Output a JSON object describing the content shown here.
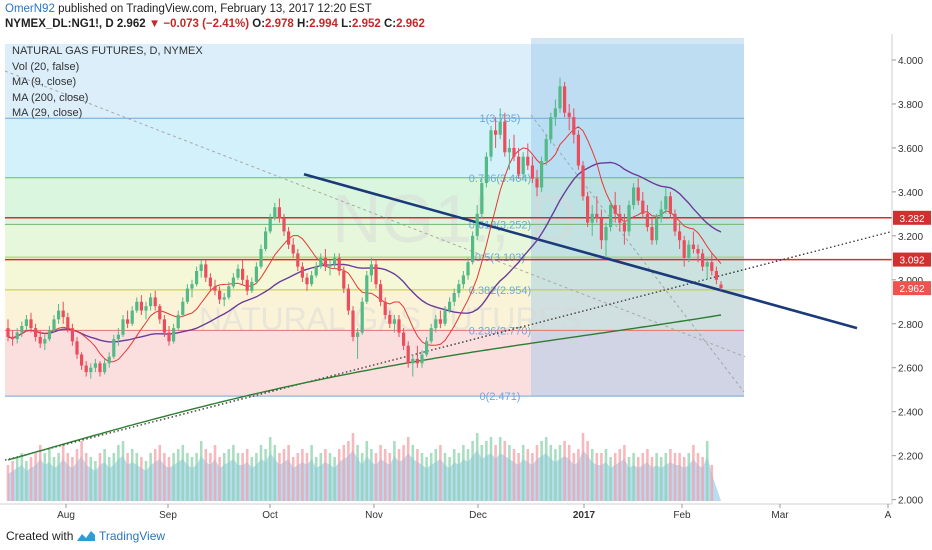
{
  "header": {
    "author": "OmerN92",
    "published_text": "published on TradingView.com, February 13, 2017 12:20 EST",
    "symbol": "NYMEX_DL:NG1!, D",
    "last": "2.962",
    "change": "▼ −0.073 (−2.41%)",
    "o_label": "O:",
    "o_value": "2.978",
    "h_label": "H:",
    "h_value": "2.994",
    "l_label": "L:",
    "l_value": "2.952",
    "c_label": "C:",
    "c_value": "2.962"
  },
  "legend": {
    "title": "NATURAL GAS FUTURES, D, NYMEX",
    "items": [
      "Vol (20, false)",
      "MA (9, close)",
      "MA (200, close)",
      "MA (29, close)"
    ]
  },
  "watermark": {
    "symbol": "NG1!, D",
    "name": "NATURAL GAS FUTURES"
  },
  "footer": {
    "created_with": "Created with",
    "brand": "TradingView"
  },
  "colors": {
    "up": "#53b987",
    "down": "#eb4d5c",
    "ma9": "#e53935",
    "ma29": "#6a3d9a",
    "ma200": "#2e7d32",
    "trend": "#1a3a7a",
    "level": "#d32f2f",
    "fib_label": "#6ea8d8"
  },
  "chart_data": {
    "type": "candlestick",
    "title": "NATURAL GAS FUTURES, D, NYMEX",
    "x_tick_labels": [
      "Aug",
      "Sep",
      "Oct",
      "Nov",
      "Dec",
      "2017",
      "Feb",
      "Mar",
      "A"
    ],
    "y_tick_labels": [
      "4.000",
      "3.800",
      "3.600",
      "3.400",
      "3.200",
      "3.000",
      "2.800",
      "2.600",
      "2.400",
      "2.200",
      "2.000"
    ],
    "ylim": [
      1.98,
      4.1
    ],
    "price_labels": [
      {
        "value": 3.282,
        "text": "3.282",
        "color": "#d32f2f"
      },
      {
        "value": 3.092,
        "text": "3.092",
        "color": "#d32f2f"
      },
      {
        "value": 2.962,
        "text": "2.962",
        "color": "#ef5350"
      }
    ],
    "horizontal_levels": [
      3.282,
      3.092
    ],
    "fibonacci": {
      "levels": [
        {
          "ratio": 1,
          "price": 3.735,
          "label": "1(3.735)"
        },
        {
          "ratio": 0.786,
          "price": 3.464,
          "label": "0.786(3.464)"
        },
        {
          "ratio": 0.618,
          "price": 3.252,
          "label": "0.618(3.252)"
        },
        {
          "ratio": 0.5,
          "price": 3.103,
          "label": "0.5(3.103)"
        },
        {
          "ratio": 0.382,
          "price": 2.954,
          "label": "0.382(2.954)"
        },
        {
          "ratio": 0.236,
          "price": 2.77,
          "label": "0.236(2.770)"
        },
        {
          "ratio": 0,
          "price": 2.471,
          "label": "0(2.471)"
        }
      ]
    },
    "ohlc": [
      [
        2.78,
        2.82,
        2.72,
        2.74
      ],
      [
        2.74,
        2.77,
        2.7,
        2.73
      ],
      [
        2.73,
        2.78,
        2.71,
        2.76
      ],
      [
        2.76,
        2.81,
        2.74,
        2.79
      ],
      [
        2.79,
        2.84,
        2.77,
        2.82
      ],
      [
        2.82,
        2.85,
        2.76,
        2.78
      ],
      [
        2.78,
        2.8,
        2.72,
        2.74
      ],
      [
        2.74,
        2.77,
        2.69,
        2.71
      ],
      [
        2.71,
        2.75,
        2.68,
        2.73
      ],
      [
        2.73,
        2.79,
        2.72,
        2.77
      ],
      [
        2.77,
        2.84,
        2.76,
        2.82
      ],
      [
        2.82,
        2.89,
        2.8,
        2.86
      ],
      [
        2.86,
        2.9,
        2.8,
        2.83
      ],
      [
        2.83,
        2.85,
        2.76,
        2.78
      ],
      [
        2.78,
        2.8,
        2.7,
        2.72
      ],
      [
        2.72,
        2.74,
        2.64,
        2.66
      ],
      [
        2.66,
        2.67,
        2.59,
        2.61
      ],
      [
        2.61,
        2.63,
        2.56,
        2.58
      ],
      [
        2.58,
        2.62,
        2.55,
        2.6
      ],
      [
        2.6,
        2.64,
        2.58,
        2.62
      ],
      [
        2.62,
        2.63,
        2.56,
        2.58
      ],
      [
        2.58,
        2.64,
        2.57,
        2.62
      ],
      [
        2.62,
        2.67,
        2.6,
        2.65
      ],
      [
        2.65,
        2.75,
        2.64,
        2.73
      ],
      [
        2.73,
        2.78,
        2.7,
        2.75
      ],
      [
        2.75,
        2.84,
        2.74,
        2.82
      ],
      [
        2.82,
        2.86,
        2.78,
        2.8
      ],
      [
        2.8,
        2.88,
        2.79,
        2.86
      ],
      [
        2.86,
        2.92,
        2.85,
        2.9
      ],
      [
        2.9,
        2.93,
        2.84,
        2.86
      ],
      [
        2.86,
        2.9,
        2.82,
        2.88
      ],
      [
        2.88,
        2.94,
        2.86,
        2.92
      ],
      [
        2.92,
        2.95,
        2.86,
        2.88
      ],
      [
        2.88,
        2.89,
        2.8,
        2.82
      ],
      [
        2.82,
        2.84,
        2.74,
        2.76
      ],
      [
        2.76,
        2.79,
        2.7,
        2.72
      ],
      [
        2.72,
        2.8,
        2.71,
        2.78
      ],
      [
        2.78,
        2.86,
        2.77,
        2.84
      ],
      [
        2.84,
        2.92,
        2.83,
        2.9
      ],
      [
        2.9,
        2.98,
        2.89,
        2.96
      ],
      [
        2.96,
        3.0,
        2.92,
        2.98
      ],
      [
        2.98,
        3.06,
        2.97,
        3.04
      ],
      [
        3.04,
        3.09,
        3.01,
        3.07
      ],
      [
        3.07,
        3.09,
        2.99,
        3.01
      ],
      [
        3.01,
        3.03,
        2.95,
        2.97
      ],
      [
        2.97,
        3.0,
        2.93,
        2.95
      ],
      [
        2.95,
        2.97,
        2.89,
        2.91
      ],
      [
        2.91,
        2.94,
        2.88,
        2.92
      ],
      [
        2.92,
        2.99,
        2.91,
        2.97
      ],
      [
        2.97,
        3.03,
        2.96,
        3.01
      ],
      [
        3.01,
        3.07,
        3.0,
        3.05
      ],
      [
        3.05,
        3.09,
        2.98,
        3.0
      ],
      [
        3.0,
        3.02,
        2.93,
        2.95
      ],
      [
        2.95,
        3.01,
        2.94,
        2.99
      ],
      [
        2.99,
        3.08,
        2.98,
        3.06
      ],
      [
        3.06,
        3.16,
        3.05,
        3.14
      ],
      [
        3.14,
        3.24,
        3.13,
        3.22
      ],
      [
        3.22,
        3.3,
        3.21,
        3.28
      ],
      [
        3.28,
        3.35,
        3.27,
        3.33
      ],
      [
        3.33,
        3.37,
        3.26,
        3.28
      ],
      [
        3.28,
        3.3,
        3.2,
        3.22
      ],
      [
        3.22,
        3.24,
        3.14,
        3.16
      ],
      [
        3.16,
        3.19,
        3.1,
        3.12
      ],
      [
        3.12,
        3.14,
        3.04,
        3.06
      ],
      [
        3.06,
        3.08,
        2.99,
        3.01
      ],
      [
        3.01,
        3.03,
        2.95,
        2.98
      ],
      [
        2.98,
        3.04,
        2.97,
        3.02
      ],
      [
        3.02,
        3.08,
        3.01,
        3.06
      ],
      [
        3.06,
        3.12,
        3.05,
        3.1
      ],
      [
        3.1,
        3.14,
        3.04,
        3.06
      ],
      [
        3.06,
        3.09,
        3.02,
        3.07
      ],
      [
        3.07,
        3.12,
        3.05,
        3.1
      ],
      [
        3.1,
        3.12,
        3.02,
        3.04
      ],
      [
        3.04,
        3.06,
        2.94,
        2.96
      ],
      [
        2.96,
        2.98,
        2.84,
        2.86
      ],
      [
        2.86,
        2.88,
        2.72,
        2.74
      ],
      [
        2.74,
        2.78,
        2.64,
        2.76
      ],
      [
        2.76,
        2.92,
        2.75,
        2.9
      ],
      [
        2.9,
        3.04,
        2.89,
        3.02
      ],
      [
        3.02,
        3.1,
        2.99,
        3.07
      ],
      [
        3.07,
        3.09,
        2.96,
        2.98
      ],
      [
        2.98,
        3.0,
        2.88,
        2.9
      ],
      [
        2.9,
        2.92,
        2.82,
        2.84
      ],
      [
        2.84,
        2.86,
        2.78,
        2.8
      ],
      [
        2.8,
        2.84,
        2.76,
        2.82
      ],
      [
        2.82,
        2.84,
        2.74,
        2.76
      ],
      [
        2.76,
        2.78,
        2.68,
        2.7
      ],
      [
        2.7,
        2.72,
        2.6,
        2.62
      ],
      [
        2.62,
        2.66,
        2.56,
        2.64
      ],
      [
        2.64,
        2.7,
        2.6,
        2.62
      ],
      [
        2.62,
        2.68,
        2.6,
        2.66
      ],
      [
        2.66,
        2.74,
        2.65,
        2.72
      ],
      [
        2.72,
        2.8,
        2.71,
        2.78
      ],
      [
        2.78,
        2.84,
        2.76,
        2.82
      ],
      [
        2.82,
        2.86,
        2.78,
        2.8
      ],
      [
        2.8,
        2.88,
        2.79,
        2.86
      ],
      [
        2.86,
        2.92,
        2.85,
        2.9
      ],
      [
        2.9,
        2.96,
        2.88,
        2.94
      ],
      [
        2.94,
        3.0,
        2.92,
        2.98
      ],
      [
        2.98,
        3.04,
        2.96,
        3.02
      ],
      [
        3.02,
        3.1,
        3.0,
        3.08
      ],
      [
        3.08,
        3.22,
        3.07,
        3.2
      ],
      [
        3.2,
        3.34,
        3.18,
        3.3
      ],
      [
        3.3,
        3.46,
        3.28,
        3.44
      ],
      [
        3.44,
        3.58,
        3.42,
        3.56
      ],
      [
        3.56,
        3.7,
        3.54,
        3.68
      ],
      [
        3.68,
        3.74,
        3.6,
        3.66
      ],
      [
        3.66,
        3.78,
        3.64,
        3.72
      ],
      [
        3.72,
        3.76,
        3.56,
        3.58
      ],
      [
        3.58,
        3.64,
        3.5,
        3.6
      ],
      [
        3.6,
        3.66,
        3.54,
        3.56
      ],
      [
        3.56,
        3.6,
        3.46,
        3.48
      ],
      [
        3.48,
        3.58,
        3.46,
        3.56
      ],
      [
        3.56,
        3.62,
        3.5,
        3.52
      ],
      [
        3.52,
        3.56,
        3.44,
        3.46
      ],
      [
        3.46,
        3.5,
        3.38,
        3.42
      ],
      [
        3.42,
        3.56,
        3.4,
        3.54
      ],
      [
        3.54,
        3.66,
        3.52,
        3.64
      ],
      [
        3.64,
        3.76,
        3.62,
        3.74
      ],
      [
        3.74,
        3.82,
        3.7,
        3.78
      ],
      [
        3.78,
        3.92,
        3.76,
        3.88
      ],
      [
        3.88,
        3.9,
        3.74,
        3.76
      ],
      [
        3.76,
        3.8,
        3.68,
        3.74
      ],
      [
        3.74,
        3.78,
        3.62,
        3.66
      ],
      [
        3.66,
        3.68,
        3.5,
        3.52
      ],
      [
        3.52,
        3.54,
        3.36,
        3.38
      ],
      [
        3.38,
        3.4,
        3.24,
        3.26
      ],
      [
        3.26,
        3.34,
        3.2,
        3.3
      ],
      [
        3.3,
        3.38,
        3.26,
        3.28
      ],
      [
        3.28,
        3.32,
        3.14,
        3.18
      ],
      [
        3.18,
        3.26,
        3.1,
        3.24
      ],
      [
        3.24,
        3.36,
        3.22,
        3.34
      ],
      [
        3.34,
        3.4,
        3.26,
        3.3
      ],
      [
        3.3,
        3.34,
        3.22,
        3.26
      ],
      [
        3.26,
        3.3,
        3.16,
        3.22
      ],
      [
        3.22,
        3.36,
        3.2,
        3.34
      ],
      [
        3.34,
        3.44,
        3.32,
        3.42
      ],
      [
        3.42,
        3.46,
        3.34,
        3.36
      ],
      [
        3.36,
        3.4,
        3.28,
        3.3
      ],
      [
        3.3,
        3.34,
        3.22,
        3.24
      ],
      [
        3.24,
        3.28,
        3.16,
        3.18
      ],
      [
        3.18,
        3.3,
        3.16,
        3.28
      ],
      [
        3.28,
        3.36,
        3.26,
        3.32
      ],
      [
        3.32,
        3.42,
        3.3,
        3.38
      ],
      [
        3.38,
        3.4,
        3.28,
        3.3
      ],
      [
        3.3,
        3.32,
        3.2,
        3.22
      ],
      [
        3.22,
        3.26,
        3.14,
        3.18
      ],
      [
        3.18,
        3.2,
        3.06,
        3.1
      ],
      [
        3.1,
        3.18,
        3.08,
        3.16
      ],
      [
        3.16,
        3.22,
        3.12,
        3.14
      ],
      [
        3.14,
        3.16,
        3.08,
        3.12
      ],
      [
        3.12,
        3.14,
        3.04,
        3.06
      ],
      [
        3.06,
        3.1,
        3.0,
        3.08
      ],
      [
        3.08,
        3.12,
        3.02,
        3.04
      ],
      [
        3.04,
        3.06,
        2.98,
        3.0
      ],
      [
        2.978,
        2.994,
        2.952,
        2.962
      ]
    ],
    "volume": [
      0.45,
      0.5,
      0.55,
      0.6,
      0.5,
      0.55,
      0.6,
      0.7,
      0.6,
      0.65,
      0.55,
      0.6,
      0.7,
      0.6,
      0.55,
      0.65,
      0.75,
      0.6,
      0.55,
      0.5,
      0.6,
      0.65,
      0.55,
      0.6,
      0.7,
      0.75,
      0.6,
      0.65,
      0.6,
      0.55,
      0.5,
      0.6,
      0.65,
      0.7,
      0.6,
      0.55,
      0.6,
      0.65,
      0.7,
      0.6,
      0.55,
      0.6,
      0.75,
      0.65,
      0.6,
      0.7,
      0.55,
      0.6,
      0.65,
      0.7,
      0.6,
      0.6,
      0.65,
      0.55,
      0.6,
      0.7,
      0.65,
      0.8,
      0.7,
      0.6,
      0.65,
      0.7,
      0.55,
      0.6,
      0.65,
      0.6,
      0.7,
      0.55,
      0.6,
      0.65,
      0.6,
      0.55,
      0.65,
      0.7,
      0.75,
      0.85,
      0.7,
      0.6,
      0.75,
      0.65,
      0.6,
      0.7,
      0.65,
      0.6,
      0.75,
      0.65,
      0.7,
      0.8,
      0.7,
      0.65,
      0.6,
      0.55,
      0.6,
      0.65,
      0.7,
      0.6,
      0.55,
      0.65,
      0.6,
      0.7,
      0.65,
      0.75,
      0.85,
      0.7,
      0.75,
      0.8,
      0.7,
      0.8,
      0.75,
      0.7,
      0.65,
      0.6,
      0.7,
      0.65,
      0.6,
      0.7,
      0.75,
      0.8,
      0.7,
      0.65,
      0.7,
      0.75,
      0.7,
      0.6,
      0.65,
      0.85,
      0.75,
      0.65,
      0.6,
      0.6,
      0.65,
      0.55,
      0.6,
      0.65,
      0.7,
      0.55,
      0.6,
      0.55,
      0.6,
      0.65,
      0.55,
      0.6,
      0.55,
      0.6,
      0.65,
      0.6,
      0.6,
      0.55,
      0.6,
      0.7,
      0.6,
      0.55,
      0.75,
      0.45
    ]
  }
}
